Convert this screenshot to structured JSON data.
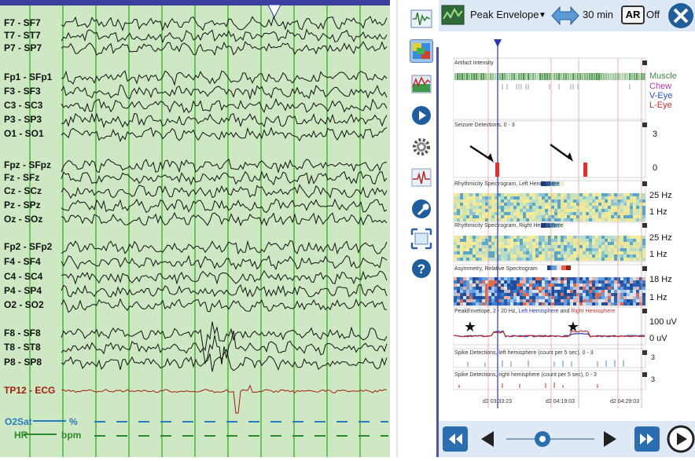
{
  "eeg": {
    "channels": [
      {
        "label": "F7 - SF7",
        "color": "#111111"
      },
      {
        "label": "T7 - ST7",
        "color": "#111111"
      },
      {
        "label": "P7 - SP7",
        "color": "#111111"
      },
      {
        "label": "Fp1 - SFp1",
        "color": "#111111"
      },
      {
        "label": "F3 - SF3",
        "color": "#111111"
      },
      {
        "label": "C3 - SC3",
        "color": "#111111"
      },
      {
        "label": "P3 - SP3",
        "color": "#111111"
      },
      {
        "label": "O1 - SO1",
        "color": "#111111"
      },
      {
        "label": "Fpz - SFpz",
        "color": "#111111"
      },
      {
        "label": "Fz - SFz",
        "color": "#111111"
      },
      {
        "label": "Cz - SCz",
        "color": "#111111"
      },
      {
        "label": "Pz - SPz",
        "color": "#111111"
      },
      {
        "label": "Oz - SOz",
        "color": "#111111"
      },
      {
        "label": "Fp2 - SFp2",
        "color": "#111111"
      },
      {
        "label": "F4 - SF4",
        "color": "#111111"
      },
      {
        "label": "C4 - SC4",
        "color": "#111111"
      },
      {
        "label": "P4 - SP4",
        "color": "#111111"
      },
      {
        "label": "O2 - SO2",
        "color": "#111111"
      },
      {
        "label": "F8 - SF8",
        "color": "#111111"
      },
      {
        "label": "T8 - ST8",
        "color": "#111111"
      },
      {
        "label": "P8 - SP8",
        "color": "#111111"
      },
      {
        "label": "TP12 - ECG",
        "color": "#a01e10"
      }
    ],
    "vitals": {
      "o2_label": "O2Sat",
      "o2_unit": "%",
      "hr_label": "HR",
      "hr_unit": "bpm"
    }
  },
  "header": {
    "montage": "Peak Envelope",
    "duration": "30 min",
    "ar_label": "AR",
    "ar_state": "Off"
  },
  "tracks": {
    "artifact": {
      "title": "Artifact Intensity",
      "legend": [
        {
          "label": "Muscle",
          "color": "#3c8c3c"
        },
        {
          "label": "Chew",
          "color": "#b03ab0"
        },
        {
          "label": "V-Eye",
          "color": "#2a4cc0"
        },
        {
          "label": "L-Eye",
          "color": "#c03030"
        }
      ]
    },
    "seizure": {
      "title": "Seizure Detections, 0 - 3",
      "scale_top": "3",
      "scale_bottom": "0"
    },
    "rhythm_left": {
      "title": "Rhythmicity Spectrogram, Left Hemisphere",
      "scale_top": "25 Hz",
      "scale_bottom": "1 Hz"
    },
    "rhythm_right": {
      "title": "Rhythmicity Spectrogram, Right Hemisphere",
      "scale_top": "25 Hz",
      "scale_bottom": "1 Hz"
    },
    "asymmetry": {
      "title": "Asymmetry, Relative Spectrogram",
      "scale_top": "18 Hz",
      "scale_bottom": "1 Hz"
    },
    "peak_envelope": {
      "title_prefix": "PeakEnvelope, 2 - 20 Hz,",
      "title_left": "Left Hemisphere",
      "title_and": "and",
      "title_right": "Right Hemisphere",
      "scale_top": "100 uV",
      "scale_bottom": "0 uV"
    },
    "spike_left": {
      "title": "Spike Detections, left hemisphere (count per 5 sec), 0 - 3",
      "scale": "3"
    },
    "spike_right": {
      "title": "Spike Detections, right hemisphere (count per 5 sec), 0 - 3",
      "scale": "3"
    }
  },
  "time_labels": [
    "d2 03:33:23",
    "d2 04:19:03",
    "d2 04:29:03"
  ],
  "colors": {
    "eeg_bg": "#cfe8c4",
    "grid": "#49b83a",
    "cursor": "#2a3aa8",
    "accent": "#4a53a8",
    "panel_bg": "#dfe9f5",
    "seizure_bar": "#e03030"
  }
}
